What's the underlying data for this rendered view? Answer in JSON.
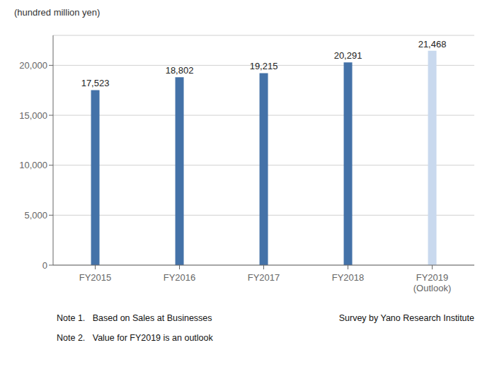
{
  "chart_data": {
    "type": "bar",
    "ylabel": "(hundred million yen)",
    "categories": [
      "FY2015",
      "FY2016",
      "FY2017",
      "FY2018",
      "FY2019\n(Outlook)"
    ],
    "values": [
      17523,
      18802,
      19215,
      20291,
      21468
    ],
    "value_labels": [
      "17,523",
      "18,802",
      "19,215",
      "20,291",
      "21,468"
    ],
    "data_labels": true,
    "colors": [
      "#4472a8",
      "#4472a8",
      "#4472a8",
      "#4472a8",
      "#c9d9ee"
    ],
    "ylim": [
      0,
      23000
    ],
    "yticks": [
      0,
      {
        "value": 5000,
        "label": "5,000"
      },
      {
        "value": 10000,
        "label": "10,000"
      },
      {
        "value": 15000,
        "label": "15,000"
      },
      {
        "value": 20000,
        "label": "20,000"
      }
    ],
    "grid": true,
    "annotations": [
      "Note 1.   Based on Sales at Businesses",
      "Note 2.   Value for FY2019 is an outlook",
      "Survey by Yano Research Institute"
    ]
  }
}
